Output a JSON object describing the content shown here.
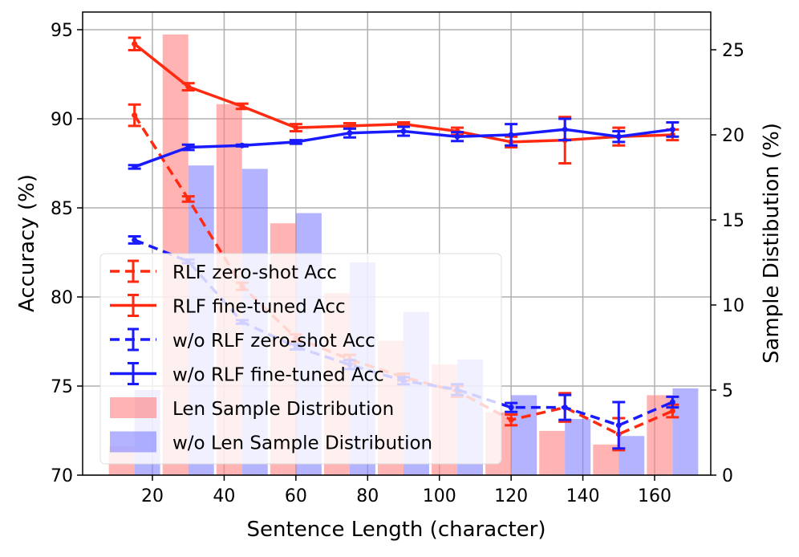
{
  "chart_data": {
    "type": "line+bar",
    "xlabel": "Sentence Length (character)",
    "ylabel": "Accuracy (%)",
    "ylabel_right": "Sample Distibution (%)",
    "xlim": [
      3,
      177
    ],
    "ylim": [
      70,
      96
    ],
    "ylim_right": [
      0,
      27.2
    ],
    "xticks": [
      20,
      40,
      60,
      80,
      100,
      120,
      140,
      160
    ],
    "yticks": [
      70,
      75,
      80,
      85,
      90,
      95
    ],
    "yticks_right": [
      0,
      5,
      10,
      15,
      20,
      25
    ],
    "grid": true,
    "legend_position": "lower-left",
    "x": [
      15,
      30,
      45,
      60,
      75,
      90,
      105,
      120,
      135,
      150,
      165
    ],
    "series": [
      {
        "name": "RLF zero-shot Acc",
        "color": "#ff2a10",
        "dash": true,
        "values": [
          90.2,
          85.5,
          80.6,
          77.7,
          76.5,
          75.5,
          74.7,
          73.1,
          73.8,
          72.3,
          73.6
        ],
        "errors": [
          0.6,
          0.15,
          0.2,
          0.2,
          0.25,
          0.2,
          0.3,
          0.3,
          0.8,
          0.9,
          0.35
        ]
      },
      {
        "name": "RLF fine-tuned Acc",
        "color": "#ff2a10",
        "dash": false,
        "values": [
          94.2,
          91.8,
          90.7,
          89.5,
          89.6,
          89.7,
          89.3,
          88.7,
          88.8,
          89.0,
          89.1
        ],
        "errors": [
          0.35,
          0.2,
          0.15,
          0.2,
          0.15,
          0.1,
          0.2,
          0.3,
          1.3,
          0.5,
          0.3
        ]
      },
      {
        "name": "w/o RLF zero-shot Acc",
        "color": "#1a1aff",
        "dash": true,
        "values": [
          83.2,
          82.0,
          78.6,
          77.2,
          76.2,
          75.3,
          74.8,
          73.8,
          73.8,
          72.8,
          74.1
        ],
        "errors": [
          0.2,
          0.1,
          0.1,
          0.15,
          0.25,
          0.2,
          0.3,
          0.25,
          0.7,
          1.3,
          0.3
        ]
      },
      {
        "name": "w/o RLF fine-tuned Acc",
        "color": "#1a1aff",
        "dash": false,
        "values": [
          87.3,
          88.4,
          88.5,
          88.7,
          89.2,
          89.3,
          89.0,
          89.1,
          89.4,
          89.0,
          89.4
        ],
        "errors": [
          0.1,
          0.15,
          0.05,
          0.1,
          0.25,
          0.25,
          0.25,
          0.6,
          0.6,
          0.3,
          0.4
        ]
      }
    ],
    "bars": [
      {
        "name": "Len Sample Distribution",
        "color": "#ff8080",
        "values": [
          1.7,
          25.9,
          21.8,
          14.8,
          10.7,
          7.9,
          6.5,
          3.7,
          2.6,
          1.8,
          4.7
        ]
      },
      {
        "name": "w/o Len Sample Distribution",
        "color": "#8080ff",
        "values": [
          5.0,
          18.2,
          18.0,
          15.4,
          12.5,
          9.6,
          6.8,
          4.7,
          3.3,
          2.3,
          5.1
        ]
      }
    ]
  }
}
